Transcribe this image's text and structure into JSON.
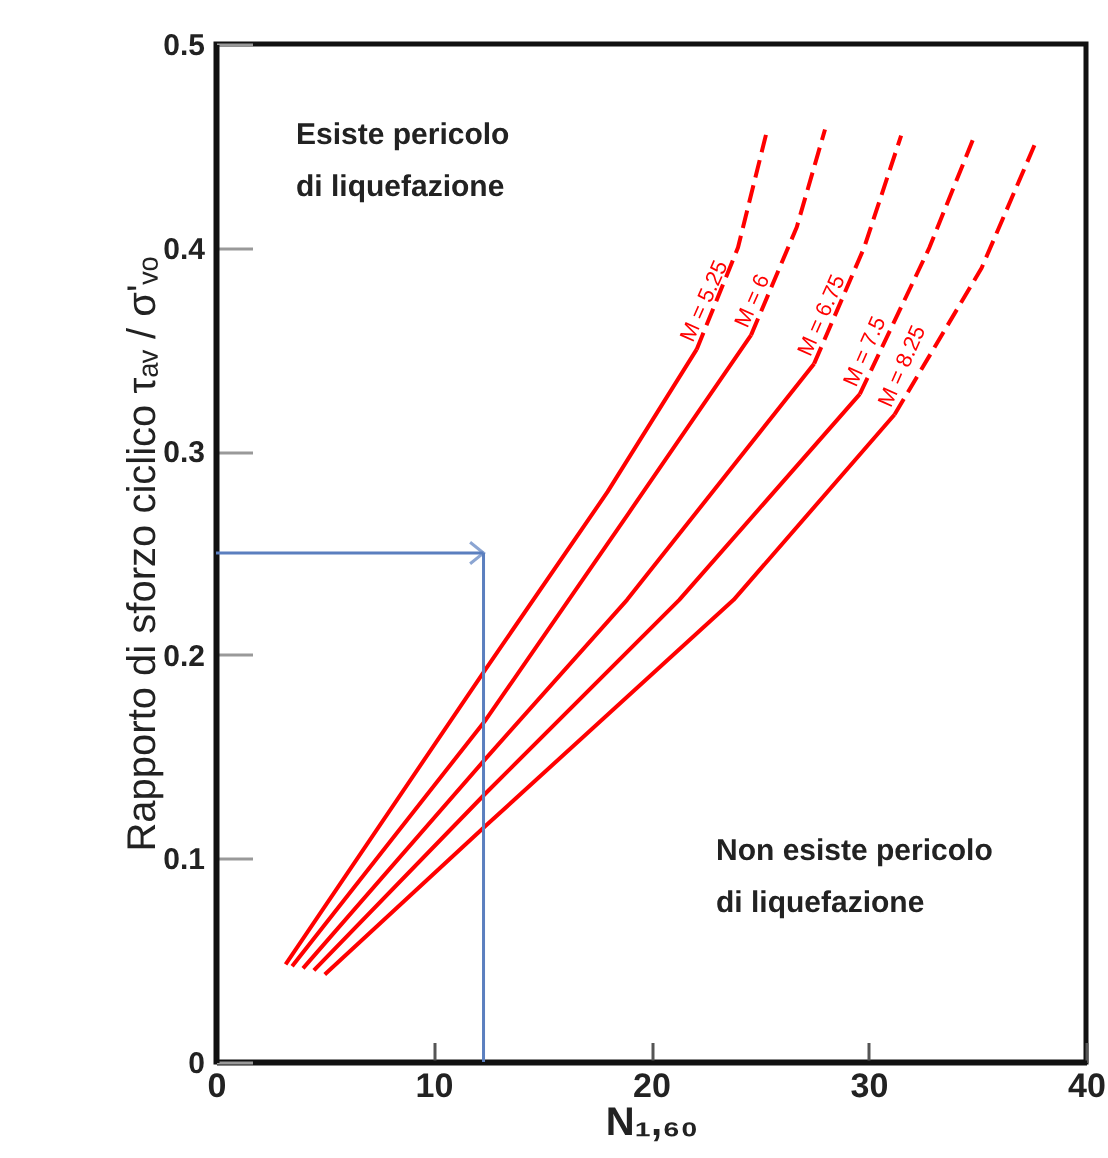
{
  "chart_data": {
    "type": "line",
    "xlabel": "N₁,₆₀",
    "ylabel": "Rapporto di sforzo ciclico τₐᵥ / σ'ᵥₒ",
    "xlim": [
      0,
      40
    ],
    "xticks": [
      0,
      10,
      20,
      30,
      40
    ],
    "ylim": [
      0,
      0.5
    ],
    "yticks": [
      0,
      0.1,
      0.2,
      0.3,
      0.4,
      0.5
    ],
    "grid": false,
    "legend": false,
    "line_style": "solid",
    "annotations": [
      "Esiste pericolo\ndi liquefazione",
      "Non esiste pericolo\ndi liquefazione"
    ],
    "ref_lines": [
      {
        "axis": "y",
        "value": 0.25,
        "color": "#5b7fbf"
      },
      {
        "axis": "x",
        "value": 12.3,
        "color": "#5b7fbf"
      }
    ],
    "series": [
      {
        "name": "M = 5.25",
        "color": "#ff0000",
        "x": [
          3.2,
          12.4,
          18,
          22.1
        ],
        "values": [
          0.048,
          0.193,
          0.28,
          0.35
        ]
      },
      {
        "name": "M = 6",
        "color": "#ff0000",
        "x": [
          3.5,
          12.4,
          19,
          24.6
        ],
        "values": [
          0.047,
          0.168,
          0.27,
          0.357
        ]
      },
      {
        "name": "M = 6.75",
        "color": "#ff0000",
        "x": [
          4,
          12.4,
          18.9,
          27.5
        ],
        "values": [
          0.046,
          0.149,
          0.227,
          0.343
        ]
      },
      {
        "name": "M = 7.5",
        "color": "#ff0000",
        "x": [
          4.5,
          12.4,
          21.3,
          29.6
        ],
        "values": [
          0.045,
          0.132,
          0.227,
          0.328
        ]
      },
      {
        "name": "M = 8.25",
        "color": "#ff0000",
        "x": [
          5,
          12.4,
          23.8,
          31.2
        ],
        "values": [
          0.043,
          0.116,
          0.227,
          0.318
        ]
      },
      {
        "color": "#ff0000",
        "line_style": "dashed",
        "x": [
          22.1,
          24,
          25.3
        ],
        "values": [
          0.35,
          0.4,
          0.456
        ]
      },
      {
        "color": "#ff0000",
        "line_style": "dashed",
        "x": [
          24.6,
          26.7,
          28
        ],
        "values": [
          0.357,
          0.41,
          0.458
        ]
      },
      {
        "color": "#ff0000",
        "line_style": "dashed",
        "x": [
          27.5,
          29.8,
          31.5
        ],
        "values": [
          0.343,
          0.4,
          0.455
        ]
      },
      {
        "color": "#ff0000",
        "line_style": "dashed",
        "x": [
          29.6,
          32.8,
          34.8
        ],
        "values": [
          0.328,
          0.4,
          0.453
        ]
      },
      {
        "color": "#ff0000",
        "line_style": "dashed",
        "x": [
          31.2,
          35.2,
          37.7
        ],
        "values": [
          0.318,
          0.39,
          0.452
        ]
      }
    ]
  }
}
